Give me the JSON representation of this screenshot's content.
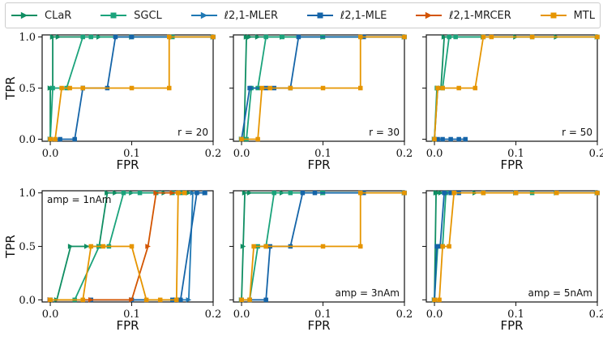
{
  "legend": {
    "items": [
      {
        "name": "CLaR",
        "color": "#0f8e62",
        "marker": "triangle-right"
      },
      {
        "name": "SGCL",
        "color": "#1aa37b",
        "marker": "square"
      },
      {
        "name": "ℓ2,1-MLER",
        "color": "#1f78b4",
        "marker": "triangle-right"
      },
      {
        "name": "ℓ2,1-MLE",
        "color": "#1464a8",
        "marker": "square"
      },
      {
        "name": "ℓ2,1-MRCER",
        "color": "#d35400",
        "marker": "triangle-right"
      },
      {
        "name": "MTL",
        "color": "#e69500",
        "marker": "square"
      }
    ]
  },
  "chart_data": [
    {
      "type": "line",
      "position": "top-left",
      "annotation": "r = 20",
      "xlabel": "FPR",
      "ylabel": "TPR",
      "xlim": [
        -0.01,
        0.2
      ],
      "ylim": [
        -0.02,
        1.02
      ],
      "xticks": [
        "0.0",
        "0.1",
        "0.2"
      ],
      "yticks": [
        "0.0",
        "0.5",
        "1.0"
      ],
      "series": [
        {
          "name": "CLaR",
          "x": [
            0,
            0,
            0.003,
            0.003,
            0.01,
            0.06,
            0.1,
            0.15,
            0.2
          ],
          "y": [
            0,
            0.5,
            0.5,
            1,
            1,
            1,
            1,
            1,
            1
          ]
        },
        {
          "name": "SGCL",
          "x": [
            0,
            0.003,
            0.02,
            0.04,
            0.05,
            0.1,
            0.15,
            0.2
          ],
          "y": [
            0,
            0.5,
            0.5,
            1,
            1,
            1,
            1,
            1
          ]
        },
        {
          "name": "ℓ2,1-MLE",
          "x": [
            0,
            0.012,
            0.03,
            0.04,
            0.04,
            0.07,
            0.08,
            0.1,
            0.2
          ],
          "y": [
            0,
            0,
            0,
            0.5,
            0.5,
            0.5,
            1,
            1,
            1
          ]
        },
        {
          "name": "MTL",
          "x": [
            0,
            0.006,
            0.014,
            0.024,
            0.04,
            0.1,
            0.146,
            0.146,
            0.2
          ],
          "y": [
            0,
            0,
            0.5,
            0.5,
            0.5,
            0.5,
            0.5,
            1,
            1
          ]
        }
      ]
    },
    {
      "type": "line",
      "position": "top-middle",
      "annotation": "r = 30",
      "xlabel": "FPR",
      "ylabel": "",
      "xlim": [
        -0.01,
        0.2
      ],
      "ylim": [
        -0.02,
        1.02
      ],
      "xticks": [
        "0.0",
        "0.1",
        "0.2"
      ],
      "yticks": [],
      "series": [
        {
          "name": "CLaR",
          "x": [
            0,
            0.003,
            0.006,
            0.01,
            0.02,
            0.05,
            0.1,
            0.15,
            0.2
          ],
          "y": [
            0,
            0,
            1,
            1,
            1,
            1,
            1,
            1,
            1
          ]
        },
        {
          "name": "SGCL",
          "x": [
            0,
            0.006,
            0.012,
            0.02,
            0.03,
            0.05,
            0.1,
            0.2
          ],
          "y": [
            0,
            0,
            0.5,
            0.5,
            1,
            1,
            1,
            1
          ]
        },
        {
          "name": "ℓ2,1-MLE",
          "x": [
            0,
            0.01,
            0.03,
            0.04,
            0.06,
            0.07,
            0.15,
            0.2
          ],
          "y": [
            0,
            0.5,
            0.5,
            0.5,
            0.5,
            1,
            1,
            1
          ]
        },
        {
          "name": "MTL",
          "x": [
            0,
            0.02,
            0.025,
            0.035,
            0.06,
            0.1,
            0.146,
            0.146,
            0.2
          ],
          "y": [
            0,
            0,
            0.5,
            0.5,
            0.5,
            0.5,
            0.5,
            1,
            1
          ]
        }
      ]
    },
    {
      "type": "line",
      "position": "top-right",
      "annotation": "r = 50",
      "xlabel": "FPR",
      "ylabel": "",
      "xlim": [
        -0.01,
        0.2
      ],
      "ylim": [
        -0.02,
        1.02
      ],
      "xticks": [
        "0.0",
        "0.1",
        "0.2"
      ],
      "yticks": [],
      "series": [
        {
          "name": "CLaR",
          "x": [
            0,
            0.004,
            0.008,
            0.012,
            0.02,
            0.06,
            0.1,
            0.15,
            0.2
          ],
          "y": [
            0,
            0.5,
            0.5,
            1,
            1,
            1,
            1,
            1,
            1
          ]
        },
        {
          "name": "SGCL",
          "x": [
            0,
            0.003,
            0.01,
            0.018,
            0.026,
            0.06,
            0.12,
            0.2
          ],
          "y": [
            0,
            0.5,
            0.5,
            1,
            1,
            1,
            1,
            1
          ]
        },
        {
          "name": "ℓ2,1-MLE",
          "x": [
            0,
            0.004,
            0.01,
            0.02,
            0.03,
            0.038
          ],
          "y": [
            0,
            0,
            0,
            0,
            0,
            0
          ]
        },
        {
          "name": "MTL",
          "x": [
            0,
            0.004,
            0.01,
            0.03,
            0.05,
            0.06,
            0.07,
            0.12,
            0.2
          ],
          "y": [
            0,
            0.5,
            0.5,
            0.5,
            0.5,
            1,
            1,
            1,
            1
          ]
        }
      ]
    },
    {
      "type": "line",
      "position": "bottom-left",
      "annotation": "amp = 1nAm",
      "xlabel": "FPR",
      "ylabel": "TPR",
      "xlim": [
        -0.01,
        0.2
      ],
      "ylim": [
        -0.02,
        1.02
      ],
      "xticks": [
        "0.0",
        "0.1",
        "0.2"
      ],
      "yticks": [
        "0.0",
        "0.5",
        "1.0"
      ],
      "series": [
        {
          "name": "CLaR",
          "x": [
            0,
            0.008,
            0.025,
            0.045,
            0.06,
            0.07,
            0.08,
            0.1,
            0.14,
            0.16,
            0.17
          ],
          "y": [
            0,
            0,
            0.5,
            0.5,
            0.5,
            1,
            1,
            1,
            1,
            1,
            1
          ]
        },
        {
          "name": "SGCL",
          "x": [
            0,
            0.03,
            0.06,
            0.072,
            0.09,
            0.11,
            0.13,
            0.15,
            0.16
          ],
          "y": [
            0,
            0,
            0.5,
            0.5,
            1,
            1,
            1,
            1,
            1
          ]
        },
        {
          "name": "ℓ2,1-MLER",
          "x": [
            0,
            0.05,
            0.1,
            0.155,
            0.16,
            0.17,
            0.175,
            0.182,
            0.19
          ],
          "y": [
            0,
            0,
            0,
            0,
            0,
            0,
            1,
            1,
            1
          ]
        },
        {
          "name": "ℓ2,1-MLE",
          "x": [
            0,
            0.05,
            0.1,
            0.15,
            0.16,
            0.18,
            0.19
          ],
          "y": [
            0,
            0,
            0,
            0,
            0,
            1,
            1
          ]
        },
        {
          "name": "ℓ2,1-MRCER",
          "x": [
            0,
            0.05,
            0.1,
            0.12,
            0.13,
            0.15,
            0.16
          ],
          "y": [
            0,
            0,
            0,
            0.5,
            1,
            1,
            1
          ]
        },
        {
          "name": "MTL",
          "x": [
            0,
            0.04,
            0.05,
            0.065,
            0.1,
            0.118,
            0.135,
            0.155,
            0.157,
            0.165
          ],
          "y": [
            0,
            0,
            0.5,
            0.5,
            0.5,
            0,
            0,
            0,
            1,
            1
          ]
        }
      ]
    },
    {
      "type": "line",
      "position": "bottom-middle",
      "annotation": "amp = 3nAm",
      "xlabel": "FPR",
      "ylabel": "",
      "xlim": [
        -0.01,
        0.2
      ],
      "ylim": [
        -0.02,
        1.02
      ],
      "xticks": [
        "0.0",
        "0.1",
        "0.2"
      ],
      "yticks": [],
      "series": [
        {
          "name": "CLaR",
          "x": [
            0,
            0.002,
            0.004,
            0.01,
            0.05,
            0.1,
            0.15,
            0.2
          ],
          "y": [
            0,
            0.5,
            1,
            1,
            1,
            1,
            1,
            1
          ]
        },
        {
          "name": "SGCL",
          "x": [
            0,
            0.01,
            0.02,
            0.03,
            0.04,
            0.06,
            0.1,
            0.2
          ],
          "y": [
            0,
            0,
            0.5,
            0.5,
            1,
            1,
            1,
            1
          ]
        },
        {
          "name": "ℓ2,1-MLE",
          "x": [
            0,
            0.01,
            0.03,
            0.035,
            0.06,
            0.075,
            0.09,
            0.15,
            0.2
          ],
          "y": [
            0,
            0,
            0,
            0.5,
            0.5,
            1,
            1,
            1,
            1
          ]
        },
        {
          "name": "MTL",
          "x": [
            0,
            0.01,
            0.015,
            0.03,
            0.1,
            0.146,
            0.146,
            0.2
          ],
          "y": [
            0,
            0,
            0.5,
            0.5,
            0.5,
            0.5,
            1,
            1
          ]
        }
      ]
    },
    {
      "type": "line",
      "position": "bottom-right",
      "annotation": "amp = 5nAm",
      "xlabel": "FPR",
      "ylabel": "",
      "xlim": [
        -0.01,
        0.2
      ],
      "ylim": [
        -0.02,
        1.02
      ],
      "xticks": [
        "0.0",
        "0.1",
        "0.2"
      ],
      "yticks": [],
      "series": [
        {
          "name": "CLaR",
          "x": [
            0,
            0.002,
            0.004,
            0.008,
            0.05,
            0.1,
            0.15,
            0.2
          ],
          "y": [
            0,
            1,
            1,
            1,
            1,
            1,
            1,
            1
          ]
        },
        {
          "name": "SGCL",
          "x": [
            0,
            0.004,
            0.01,
            0.014,
            0.02,
            0.06,
            0.12,
            0.2
          ],
          "y": [
            0,
            0.5,
            0.5,
            1,
            1,
            1,
            1,
            1
          ]
        },
        {
          "name": "ℓ2,1-MLE",
          "x": [
            0,
            0.003,
            0.007,
            0.012,
            0.02,
            0.03,
            0.1,
            0.2
          ],
          "y": [
            0,
            0.5,
            0.5,
            1,
            1,
            1,
            1,
            1
          ]
        },
        {
          "name": "MTL",
          "x": [
            0,
            0.006,
            0.01,
            0.018,
            0.024,
            0.06,
            0.1,
            0.15,
            0.2
          ],
          "y": [
            0,
            0,
            0.5,
            0.5,
            1,
            1,
            1,
            1,
            1
          ]
        }
      ]
    }
  ]
}
